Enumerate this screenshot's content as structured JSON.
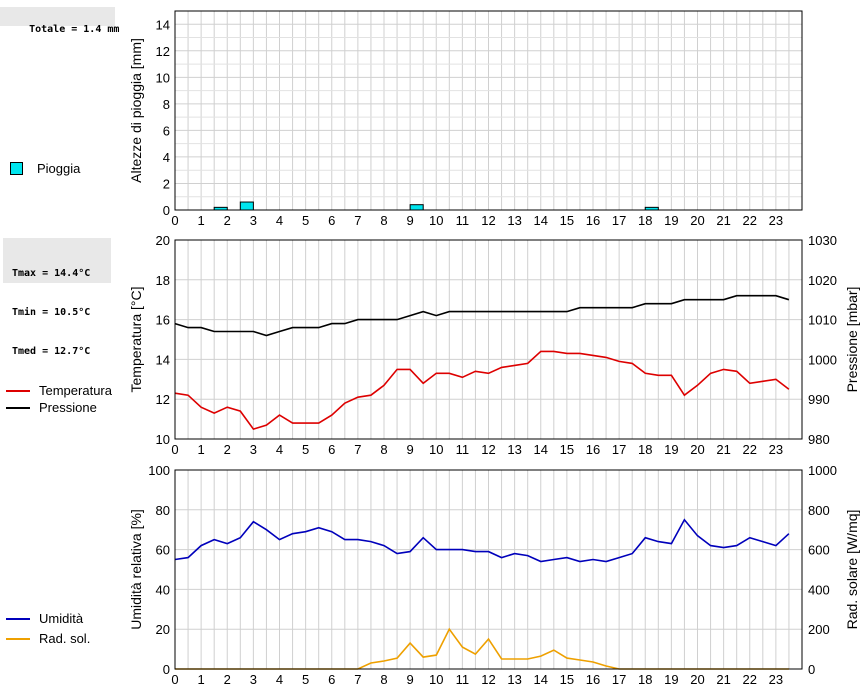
{
  "rain_box": {
    "total": "Totale = 1.4 mm"
  },
  "temp_box": {
    "tmax": "Tmax = 14.4°C",
    "tmin": "Tmin = 10.5°C",
    "tmed": "Tmed = 12.7°C"
  },
  "legend": {
    "rain": {
      "label": "Pioggia",
      "color": "#00e5ee"
    },
    "temperature": {
      "label": "Temperatura",
      "color": "#dd0000"
    },
    "pressure": {
      "label": "Pressione",
      "color": "#000000"
    },
    "humidity": {
      "label": "Umidità",
      "color": "#0000bb"
    },
    "radiation": {
      "label": "Rad. sol.",
      "color": "#eea000"
    }
  },
  "chart_data": [
    {
      "type": "bar",
      "ylabel": "Altezze di pioggia [mm]",
      "xlabel": "",
      "x_ticks": [
        "0",
        "1",
        "2",
        "3",
        "4",
        "5",
        "6",
        "7",
        "8",
        "9",
        "10",
        "11",
        "12",
        "13",
        "14",
        "15",
        "16",
        "17",
        "18",
        "19",
        "20",
        "21",
        "22",
        "23"
      ],
      "xlim": [
        0,
        24
      ],
      "ylim": [
        0,
        15
      ],
      "y_ticks": [
        0,
        2,
        4,
        6,
        8,
        10,
        12,
        14
      ],
      "grid": true,
      "series": [
        {
          "name": "Pioggia",
          "color": "#00e5ee",
          "x": [
            1.75,
            2.75,
            9.25,
            18.25
          ],
          "values": [
            0.2,
            0.6,
            0.4,
            0.2
          ]
        }
      ]
    },
    {
      "type": "line",
      "ylabel": "Temperatura [°C]",
      "y2label": "Pressione [mbar]",
      "x_ticks": [
        "0",
        "1",
        "2",
        "3",
        "4",
        "5",
        "6",
        "7",
        "8",
        "9",
        "10",
        "11",
        "12",
        "13",
        "14",
        "15",
        "16",
        "17",
        "18",
        "19",
        "20",
        "21",
        "22",
        "23"
      ],
      "xlim": [
        0,
        24
      ],
      "ylim": [
        10,
        20
      ],
      "y_ticks": [
        10,
        12,
        14,
        16,
        18,
        20
      ],
      "y2lim": [
        980,
        1030
      ],
      "y2_ticks": [
        980,
        990,
        1000,
        1010,
        1020,
        1030
      ],
      "grid": true,
      "x": [
        0,
        0.5,
        1,
        1.5,
        2,
        2.5,
        3,
        3.5,
        4,
        4.5,
        5,
        5.5,
        6,
        6.5,
        7,
        7.5,
        8,
        8.5,
        9,
        9.5,
        10,
        10.5,
        11,
        11.5,
        12,
        12.5,
        13,
        13.5,
        14,
        14.5,
        15,
        15.5,
        16,
        16.5,
        17,
        17.5,
        18,
        18.5,
        19,
        19.5,
        20,
        20.5,
        21,
        21.5,
        22,
        22.5,
        23,
        23.5
      ],
      "series": [
        {
          "name": "Temperatura",
          "axis": "left",
          "color": "#dd0000",
          "values": [
            12.3,
            12.2,
            11.6,
            11.3,
            11.6,
            11.4,
            10.5,
            10.7,
            11.2,
            10.8,
            10.8,
            10.8,
            11.2,
            11.8,
            12.1,
            12.2,
            12.7,
            13.5,
            13.5,
            12.8,
            13.3,
            13.3,
            13.1,
            13.4,
            13.3,
            13.6,
            13.7,
            13.8,
            14.4,
            14.4,
            14.3,
            14.3,
            14.2,
            14.1,
            13.9,
            13.8,
            13.3,
            13.2,
            13.2,
            12.2,
            12.7,
            13.3,
            13.5,
            13.4,
            12.8,
            12.9,
            13.0,
            12.5
          ]
        },
        {
          "name": "Pressione",
          "axis": "right",
          "color": "#000000",
          "values": [
            1009,
            1008,
            1008,
            1007,
            1007,
            1007,
            1007,
            1006,
            1007,
            1008,
            1008,
            1008,
            1009,
            1009,
            1010,
            1010,
            1010,
            1010,
            1011,
            1012,
            1011,
            1012,
            1012,
            1012,
            1012,
            1012,
            1012,
            1012,
            1012,
            1012,
            1012,
            1013,
            1013,
            1013,
            1013,
            1013,
            1014,
            1014,
            1014,
            1015,
            1015,
            1015,
            1015,
            1016,
            1016,
            1016,
            1016,
            1015
          ]
        }
      ]
    },
    {
      "type": "line",
      "ylabel": "Umidità relativa [%]",
      "y2label": "Rad. solare [W/mq]",
      "x_ticks": [
        "0",
        "1",
        "2",
        "3",
        "4",
        "5",
        "6",
        "7",
        "8",
        "9",
        "10",
        "11",
        "12",
        "13",
        "14",
        "15",
        "16",
        "17",
        "18",
        "19",
        "20",
        "21",
        "22",
        "23"
      ],
      "xlim": [
        0,
        24
      ],
      "ylim": [
        0,
        100
      ],
      "y_ticks": [
        0,
        20,
        40,
        60,
        80,
        100
      ],
      "y2lim": [
        0,
        1000
      ],
      "y2_ticks": [
        0,
        200,
        400,
        600,
        800,
        1000
      ],
      "grid": true,
      "x": [
        0,
        0.5,
        1,
        1.5,
        2,
        2.5,
        3,
        3.5,
        4,
        4.5,
        5,
        5.5,
        6,
        6.5,
        7,
        7.5,
        8,
        8.5,
        9,
        9.5,
        10,
        10.5,
        11,
        11.5,
        12,
        12.5,
        13,
        13.5,
        14,
        14.5,
        15,
        15.5,
        16,
        16.5,
        17,
        17.5,
        18,
        18.5,
        19,
        19.5,
        20,
        20.5,
        21,
        21.5,
        22,
        22.5,
        23,
        23.5
      ],
      "series": [
        {
          "name": "Umidità",
          "axis": "left",
          "color": "#0000bb",
          "values": [
            55,
            56,
            62,
            65,
            63,
            66,
            74,
            70,
            65,
            68,
            69,
            71,
            69,
            65,
            65,
            64,
            62,
            58,
            59,
            66,
            60,
            60,
            60,
            59,
            59,
            56,
            58,
            57,
            54,
            55,
            56,
            54,
            55,
            54,
            56,
            58,
            66,
            64,
            63,
            75,
            67,
            62,
            61,
            62,
            66,
            64,
            62,
            68
          ]
        },
        {
          "name": "Rad. sol.",
          "axis": "right",
          "color": "#eea000",
          "values": [
            0,
            0,
            0,
            0,
            0,
            0,
            0,
            0,
            0,
            0,
            0,
            0,
            0,
            0,
            0,
            30,
            40,
            55,
            130,
            60,
            70,
            200,
            110,
            75,
            150,
            50,
            50,
            50,
            65,
            95,
            55,
            45,
            35,
            15,
            0,
            0,
            0,
            0,
            0,
            0,
            0,
            0,
            0,
            0,
            0,
            0,
            0,
            0
          ]
        }
      ]
    }
  ]
}
